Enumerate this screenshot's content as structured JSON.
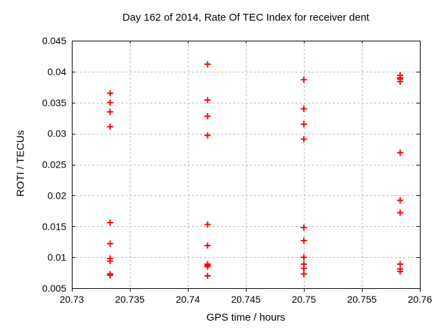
{
  "chart_data": {
    "type": "scatter",
    "title": "Day 162 of 2014, Rate Of TEC Index for receiver dent",
    "xlabel": "GPS time / hours",
    "ylabel": "ROTI / TECUs",
    "xlim": [
      20.73,
      20.76
    ],
    "ylim": [
      0.005,
      0.045
    ],
    "xticks": {
      "values": [
        20.73,
        20.735,
        20.74,
        20.745,
        20.75,
        20.755,
        20.76
      ],
      "labels": [
        "20.73",
        "20.735",
        "20.74",
        "20.745",
        "20.75",
        "20.755",
        "20.76"
      ]
    },
    "yticks": {
      "values": [
        0.005,
        0.01,
        0.015,
        0.02,
        0.025,
        0.03,
        0.035,
        0.04,
        0.045
      ],
      "labels": [
        "0.005",
        "0.01",
        "0.015",
        "0.02",
        "0.025",
        "0.03",
        "0.035",
        "0.04",
        "0.045"
      ]
    },
    "grid": true,
    "legend_position": "none",
    "marker": {
      "shape": "plus",
      "color": "#ff0000",
      "size": 9,
      "stroke_width": 2
    },
    "grid_color": "#ababab",
    "axis_color": "#000000",
    "background_color": "#ffffff",
    "series": [
      {
        "name": "ROTI",
        "points": [
          [
            20.7333,
            0.0365
          ],
          [
            20.7333,
            0.035
          ],
          [
            20.7333,
            0.0335
          ],
          [
            20.7333,
            0.0311
          ],
          [
            20.7333,
            0.0156
          ],
          [
            20.7333,
            0.0122
          ],
          [
            20.7333,
            0.0098
          ],
          [
            20.7333,
            0.0094
          ],
          [
            20.7333,
            0.0073
          ],
          [
            20.7333,
            0.0071
          ],
          [
            20.7417,
            0.0412
          ],
          [
            20.7417,
            0.0354
          ],
          [
            20.7417,
            0.0328
          ],
          [
            20.7417,
            0.0297
          ],
          [
            20.7417,
            0.0153
          ],
          [
            20.7417,
            0.0119
          ],
          [
            20.7417,
            0.0089
          ],
          [
            20.7417,
            0.0088
          ],
          [
            20.7417,
            0.0087
          ],
          [
            20.7417,
            0.0085
          ],
          [
            20.7417,
            0.007
          ],
          [
            20.75,
            0.0387
          ],
          [
            20.75,
            0.034
          ],
          [
            20.75,
            0.0315
          ],
          [
            20.75,
            0.0291
          ],
          [
            20.75,
            0.0148
          ],
          [
            20.75,
            0.0127
          ],
          [
            20.75,
            0.01
          ],
          [
            20.75,
            0.0089
          ],
          [
            20.75,
            0.0082
          ],
          [
            20.75,
            0.0073
          ],
          [
            20.7583,
            0.0394
          ],
          [
            20.7583,
            0.039
          ],
          [
            20.7583,
            0.0388
          ],
          [
            20.7583,
            0.0384
          ],
          [
            20.7583,
            0.0269
          ],
          [
            20.7583,
            0.0192
          ],
          [
            20.7583,
            0.0172
          ],
          [
            20.7583,
            0.0089
          ],
          [
            20.7583,
            0.0081
          ],
          [
            20.7583,
            0.0077
          ]
        ]
      }
    ]
  }
}
